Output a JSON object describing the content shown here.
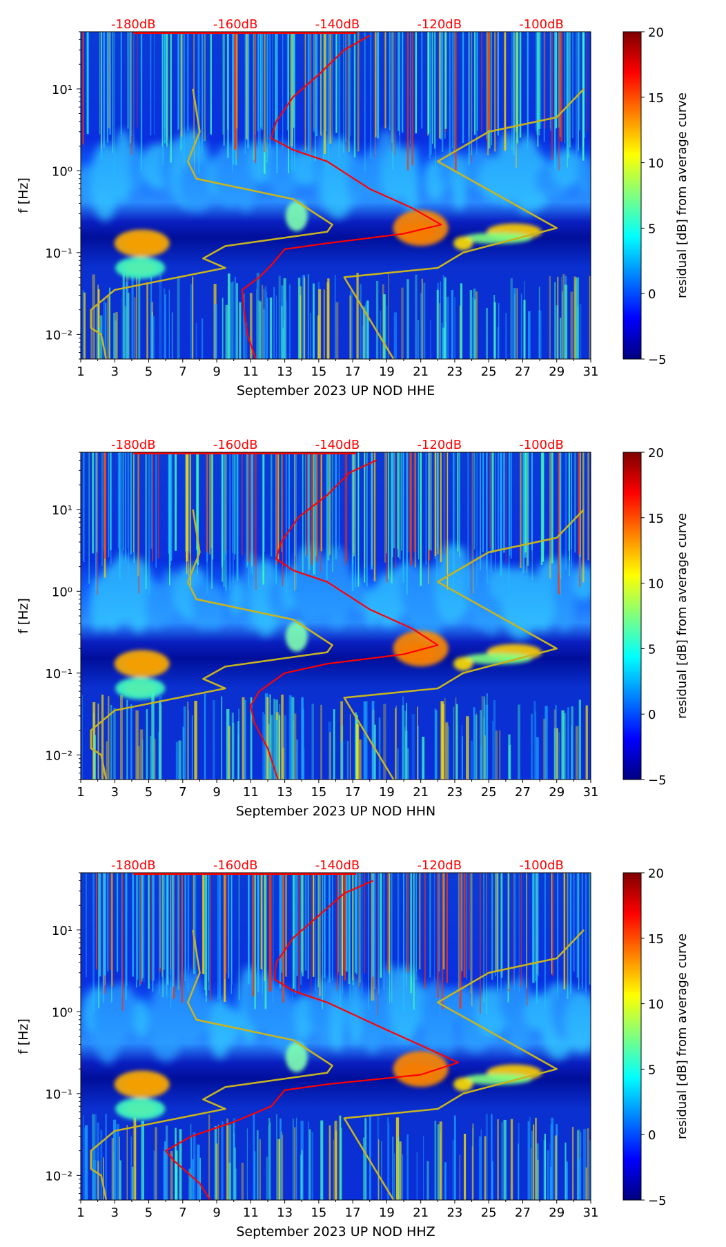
{
  "chart_data": [
    {
      "type": "heatmap",
      "id": "hhe",
      "xlabel": "September 2023 UP NOD  HHE",
      "ylabel": "f [Hz]",
      "xlim": [
        1,
        31
      ],
      "ylim": [
        0.005,
        50
      ],
      "yscale": "log",
      "x_ticks": [
        "1",
        "3",
        "5",
        "7",
        "9",
        "11",
        "13",
        "15",
        "17",
        "19",
        "21",
        "23",
        "25",
        "27",
        "29",
        "31"
      ],
      "y_ticks": [
        {
          "value": 0.01,
          "label": "10⁻²"
        },
        {
          "value": 0.1,
          "label": "10⁻¹"
        },
        {
          "value": 1,
          "label": "10⁰"
        },
        {
          "value": 10,
          "label": "10¹"
        }
      ],
      "db_scale_labels": [
        "-180dB",
        "-160dB",
        "-140dB",
        "-120dB",
        "-100dB"
      ],
      "db_scale_positions_day": [
        4.1,
        10.1,
        16.1,
        22.1,
        28.1
      ],
      "colorbar": {
        "label": "residual [dB] from average curve",
        "min": -5,
        "max": 20,
        "ticks": [
          "20",
          "15",
          "10",
          "5",
          "0",
          "−5"
        ],
        "colormap": "jet"
      },
      "series": [
        {
          "name": "average PSD",
          "color": "#ff0000",
          "points": [
            [
              18.0,
              45
            ],
            [
              16.5,
              30
            ],
            [
              15.0,
              15
            ],
            [
              13.5,
              8
            ],
            [
              12.5,
              4
            ],
            [
              12.2,
              2.5
            ],
            [
              13.5,
              1.8
            ],
            [
              15.5,
              1.3
            ],
            [
              18.0,
              0.6
            ],
            [
              20.5,
              0.35
            ],
            [
              22.2,
              0.22
            ],
            [
              20.0,
              0.17
            ],
            [
              15.5,
              0.13
            ],
            [
              13.0,
              0.11
            ],
            [
              12.2,
              0.07
            ],
            [
              11.5,
              0.05
            ],
            [
              10.5,
              0.035
            ],
            [
              10.6,
              0.02
            ],
            [
              10.8,
              0.01
            ],
            [
              11.3,
              0.005
            ]
          ]
        },
        {
          "name": "low noise model",
          "color": "#c8b41e",
          "points": [
            [
              2.5,
              0.005
            ],
            [
              2.2,
              0.01
            ],
            [
              1.6,
              0.012
            ],
            [
              1.6,
              0.02
            ],
            [
              3.0,
              0.035
            ],
            [
              9.5,
              0.065
            ],
            [
              8.2,
              0.085
            ],
            [
              9.5,
              0.12
            ],
            [
              15.5,
              0.18
            ],
            [
              15.8,
              0.22
            ],
            [
              13.5,
              0.45
            ],
            [
              7.8,
              0.8
            ],
            [
              7.3,
              1.3
            ],
            [
              8.0,
              3.0
            ],
            [
              7.6,
              10
            ]
          ]
        },
        {
          "name": "high noise model",
          "color": "#c8b41e",
          "points": [
            [
              19.4,
              0.005
            ],
            [
              16.5,
              0.05
            ],
            [
              22.0,
              0.065
            ],
            [
              23.5,
              0.1
            ],
            [
              29.0,
              0.2
            ],
            [
              22.0,
              1.3
            ],
            [
              25.0,
              3.0
            ],
            [
              29.0,
              4.5
            ],
            [
              30.6,
              10
            ]
          ]
        }
      ]
    },
    {
      "type": "heatmap",
      "id": "hhn",
      "xlabel": "September 2023 UP NOD  HHN",
      "ylabel": "f [Hz]",
      "xlim": [
        1,
        31
      ],
      "ylim": [
        0.005,
        50
      ],
      "yscale": "log",
      "x_ticks": [
        "1",
        "3",
        "5",
        "7",
        "9",
        "11",
        "13",
        "15",
        "17",
        "19",
        "21",
        "23",
        "25",
        "27",
        "29",
        "31"
      ],
      "y_ticks": [
        {
          "value": 0.01,
          "label": "10⁻²"
        },
        {
          "value": 0.1,
          "label": "10⁻¹"
        },
        {
          "value": 1,
          "label": "10⁰"
        },
        {
          "value": 10,
          "label": "10¹"
        }
      ],
      "db_scale_labels": [
        "-180dB",
        "-160dB",
        "-140dB",
        "-120dB",
        "-100dB"
      ],
      "db_scale_positions_day": [
        4.1,
        10.1,
        16.1,
        22.1,
        28.1
      ],
      "colorbar": {
        "label": "residual [dB] from average curve",
        "min": -5,
        "max": 20,
        "ticks": [
          "20",
          "15",
          "10",
          "5",
          "0",
          "−5"
        ],
        "colormap": "jet"
      },
      "series": [
        {
          "name": "average PSD",
          "color": "#ff0000",
          "points": [
            [
              18.4,
              40
            ],
            [
              16.8,
              28
            ],
            [
              15.5,
              15
            ],
            [
              13.8,
              8
            ],
            [
              12.8,
              4
            ],
            [
              12.5,
              2.5
            ],
            [
              13.5,
              1.8
            ],
            [
              15.5,
              1.3
            ],
            [
              18.0,
              0.6
            ],
            [
              20.5,
              0.35
            ],
            [
              22.0,
              0.22
            ],
            [
              20.0,
              0.17
            ],
            [
              15.5,
              0.13
            ],
            [
              13.0,
              0.1
            ],
            [
              11.5,
              0.06
            ],
            [
              11.0,
              0.04
            ],
            [
              11.2,
              0.025
            ],
            [
              12.0,
              0.012
            ],
            [
              12.6,
              0.005
            ]
          ]
        },
        {
          "name": "low noise model",
          "color": "#c8b41e",
          "points": [
            [
              2.5,
              0.005
            ],
            [
              2.2,
              0.01
            ],
            [
              1.6,
              0.012
            ],
            [
              1.6,
              0.02
            ],
            [
              3.0,
              0.035
            ],
            [
              9.5,
              0.065
            ],
            [
              8.2,
              0.085
            ],
            [
              9.5,
              0.12
            ],
            [
              15.5,
              0.18
            ],
            [
              15.8,
              0.22
            ],
            [
              13.5,
              0.45
            ],
            [
              7.8,
              0.8
            ],
            [
              7.3,
              1.3
            ],
            [
              8.0,
              3.0
            ],
            [
              7.6,
              10
            ]
          ]
        },
        {
          "name": "high noise model",
          "color": "#c8b41e",
          "points": [
            [
              19.4,
              0.005
            ],
            [
              16.5,
              0.05
            ],
            [
              22.0,
              0.065
            ],
            [
              23.5,
              0.1
            ],
            [
              29.0,
              0.2
            ],
            [
              22.0,
              1.3
            ],
            [
              25.0,
              3.0
            ],
            [
              29.0,
              4.5
            ],
            [
              30.6,
              10
            ]
          ]
        }
      ]
    },
    {
      "type": "heatmap",
      "id": "hhz",
      "xlabel": "September 2023 UP NOD  HHZ",
      "ylabel": "f [Hz]",
      "xlim": [
        1,
        31
      ],
      "ylim": [
        0.005,
        50
      ],
      "yscale": "log",
      "x_ticks": [
        "1",
        "3",
        "5",
        "7",
        "9",
        "11",
        "13",
        "15",
        "17",
        "19",
        "21",
        "23",
        "25",
        "27",
        "29",
        "31"
      ],
      "y_ticks": [
        {
          "value": 0.01,
          "label": "10⁻²"
        },
        {
          "value": 0.1,
          "label": "10⁻¹"
        },
        {
          "value": 1,
          "label": "10⁰"
        },
        {
          "value": 10,
          "label": "10¹"
        }
      ],
      "db_scale_labels": [
        "-180dB",
        "-160dB",
        "-140dB",
        "-120dB",
        "-100dB"
      ],
      "db_scale_positions_day": [
        4.1,
        10.1,
        16.1,
        22.1,
        28.1
      ],
      "colorbar": {
        "label": "residual [dB] from average curve",
        "min": -5,
        "max": 20,
        "ticks": [
          "20",
          "15",
          "10",
          "5",
          "0",
          "−5"
        ],
        "colormap": "jet"
      },
      "series": [
        {
          "name": "average PSD",
          "color": "#ff0000",
          "points": [
            [
              18.2,
              40
            ],
            [
              16.5,
              28
            ],
            [
              15.0,
              15
            ],
            [
              13.5,
              8
            ],
            [
              12.5,
              4
            ],
            [
              12.4,
              2.5
            ],
            [
              13.5,
              1.8
            ],
            [
              15.5,
              1.3
            ],
            [
              19.0,
              0.6
            ],
            [
              21.5,
              0.35
            ],
            [
              23.2,
              0.24
            ],
            [
              21.0,
              0.17
            ],
            [
              15.5,
              0.13
            ],
            [
              13.0,
              0.11
            ],
            [
              12.2,
              0.07
            ],
            [
              10.0,
              0.045
            ],
            [
              7.5,
              0.03
            ],
            [
              6.0,
              0.02
            ],
            [
              6.5,
              0.015
            ],
            [
              8.0,
              0.008
            ],
            [
              8.6,
              0.005
            ]
          ]
        },
        {
          "name": "low noise model",
          "color": "#c8b41e",
          "points": [
            [
              2.5,
              0.005
            ],
            [
              2.2,
              0.01
            ],
            [
              1.6,
              0.012
            ],
            [
              1.6,
              0.02
            ],
            [
              3.0,
              0.035
            ],
            [
              9.5,
              0.065
            ],
            [
              8.2,
              0.085
            ],
            [
              9.5,
              0.12
            ],
            [
              15.5,
              0.18
            ],
            [
              15.8,
              0.22
            ],
            [
              13.5,
              0.45
            ],
            [
              7.8,
              0.8
            ],
            [
              7.3,
              1.3
            ],
            [
              8.0,
              3.0
            ],
            [
              7.6,
              10
            ]
          ]
        },
        {
          "name": "high noise model",
          "color": "#c8b41e",
          "points": [
            [
              19.4,
              0.005
            ],
            [
              16.5,
              0.05
            ],
            [
              22.0,
              0.065
            ],
            [
              23.5,
              0.1
            ],
            [
              29.0,
              0.2
            ],
            [
              22.0,
              1.3
            ],
            [
              25.0,
              3.0
            ],
            [
              29.0,
              4.5
            ],
            [
              30.6,
              10
            ]
          ]
        }
      ]
    }
  ]
}
